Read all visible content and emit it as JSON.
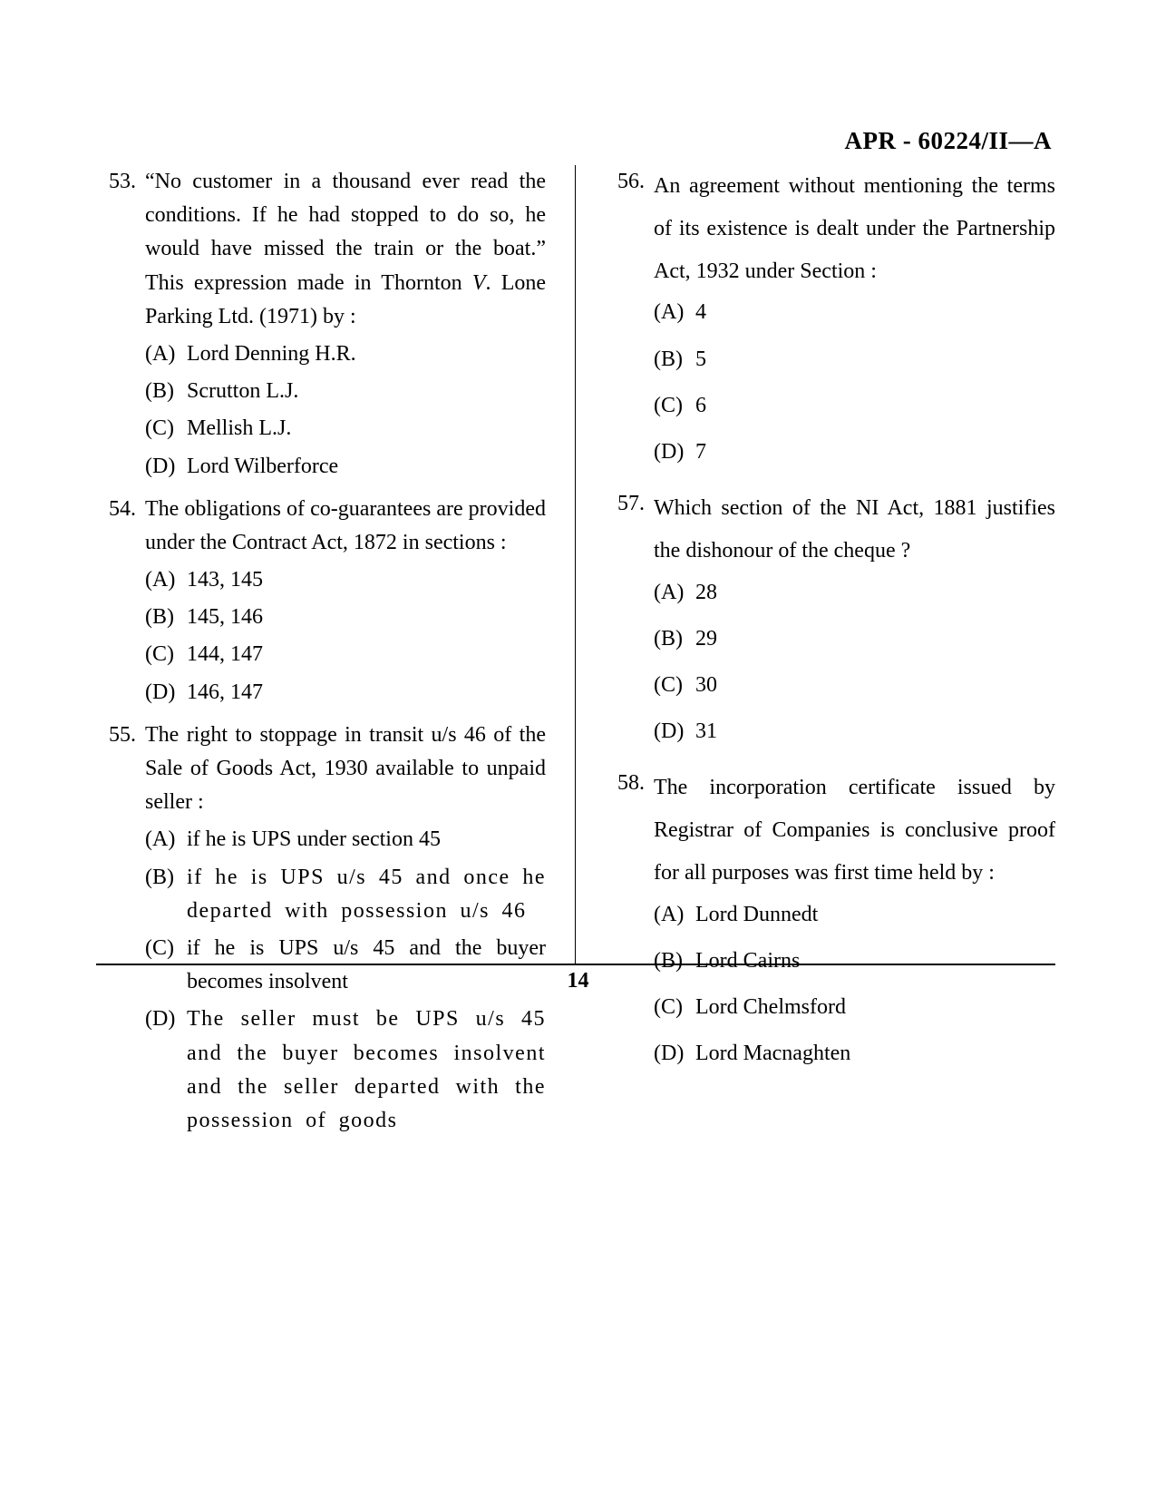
{
  "header": "APR - 60224/II—A",
  "page_number": "14",
  "left": [
    {
      "num": "53.",
      "stem_html": "“No customer in a thousand ever read the conditions. If he had stopped to do so, he would have missed the train or the boat.” This expression made in Thornton <span class=\"italic\">V</span>. Lone Parking Ltd. (1971) by :",
      "options": [
        {
          "l": "(A)",
          "t": "Lord Denning H.R."
        },
        {
          "l": "(B)",
          "t": "Scrutton L.J."
        },
        {
          "l": "(C)",
          "t": "Mellish L.J."
        },
        {
          "l": "(D)",
          "t": "Lord Wilberforce"
        }
      ]
    },
    {
      "num": "54.",
      "stem_html": "The obligations of co-guarantees are provided under the Contract Act, 1872 in sections :",
      "options": [
        {
          "l": "(A)",
          "t": "143, 145"
        },
        {
          "l": "(B)",
          "t": "145, 146"
        },
        {
          "l": "(C)",
          "t": "144, 147"
        },
        {
          "l": "(D)",
          "t": "146, 147"
        }
      ]
    },
    {
      "num": "55.",
      "stem_html": "The right to stoppage in transit u/s 46 of the Sale of Goods Act, 1930 available to unpaid seller :",
      "options": [
        {
          "l": "(A)",
          "t": "if he is UPS under section 45"
        },
        {
          "l": "(B)",
          "t": "if he is UPS u/s 45 and once he departed with possession u/s 46",
          "spaced": true
        },
        {
          "l": "(C)",
          "t": "if he is UPS u/s 45 and the buyer becomes insolvent"
        },
        {
          "l": "(D)",
          "t": "The seller must be UPS u/s 45 and the buyer becomes insolvent and the seller departed with the possession of goods",
          "spaced": true
        }
      ]
    }
  ],
  "right": [
    {
      "num": "56.",
      "loose": true,
      "stem_html": "An agreement without mentioning the terms of its existence is dealt under the Partnership Act, 1932 under Section :",
      "options": [
        {
          "l": "(A)",
          "t": "4"
        },
        {
          "l": "(B)",
          "t": "5"
        },
        {
          "l": "(C)",
          "t": "6"
        },
        {
          "l": "(D)",
          "t": "7"
        }
      ]
    },
    {
      "num": "57.",
      "loose": true,
      "stem_html": "Which section of the NI Act, 1881 justifies the dishonour of the cheque ?",
      "options": [
        {
          "l": "(A)",
          "t": "28"
        },
        {
          "l": "(B)",
          "t": "29"
        },
        {
          "l": "(C)",
          "t": "30"
        },
        {
          "l": "(D)",
          "t": "31"
        }
      ]
    },
    {
      "num": "58.",
      "loose": true,
      "stem_html": "The incorporation certificate issued by Registrar of Companies is conclusive proof  for all purposes was first time held by :",
      "options": [
        {
          "l": "(A)",
          "t": "Lord Dunnedt"
        },
        {
          "l": "(B)",
          "t": "Lord Cairns"
        },
        {
          "l": "(C)",
          "t": "Lord Chelmsford"
        },
        {
          "l": "(D)",
          "t": "Lord Macnaghten"
        }
      ]
    }
  ]
}
